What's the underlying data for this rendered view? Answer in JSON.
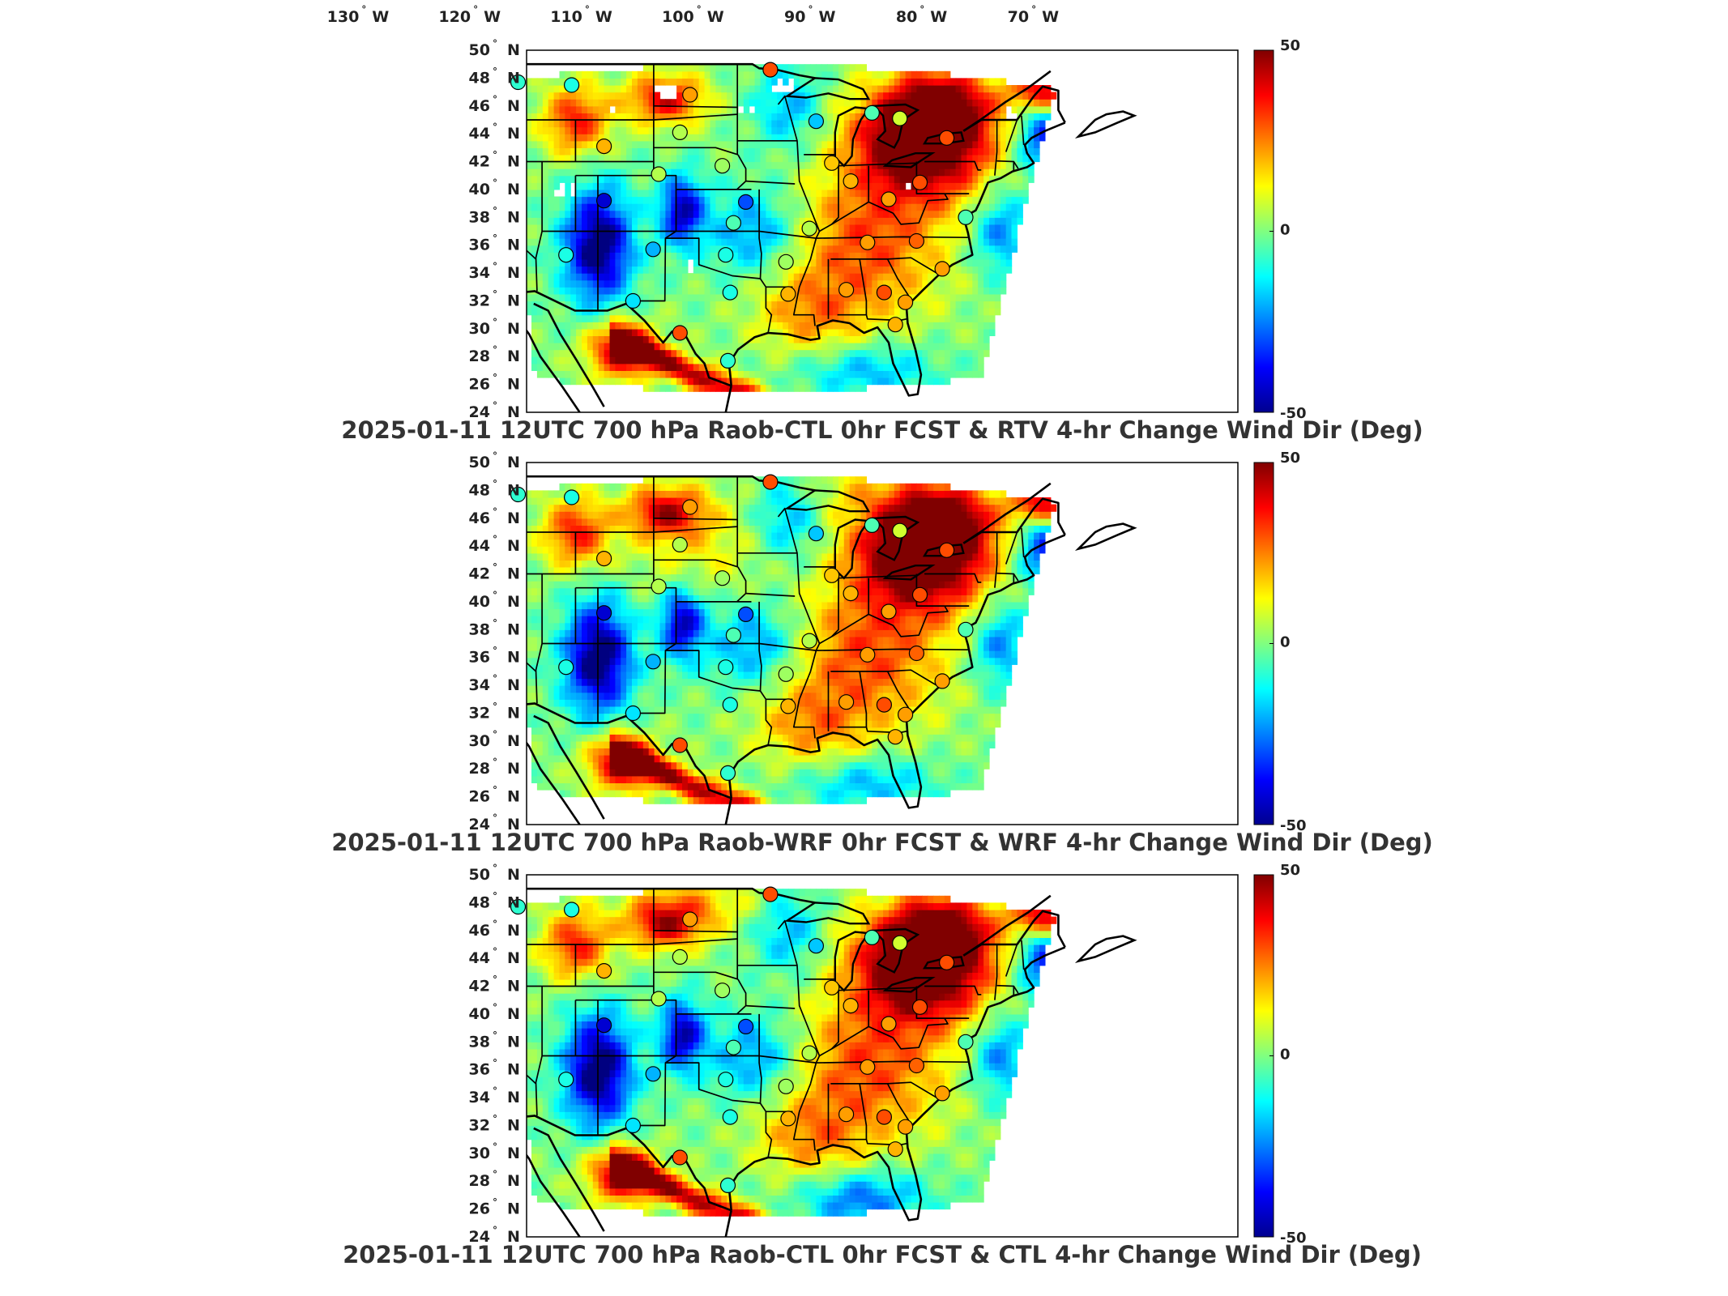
{
  "lon_labels": [
    "130",
    "120",
    "110",
    "100",
    "90",
    "80",
    "70"
  ],
  "lon_suffix": "W",
  "lat_labels": [
    "50",
    "48",
    "46",
    "44",
    "42",
    "40",
    "38",
    "36",
    "34",
    "32",
    "30",
    "28",
    "26",
    "24"
  ],
  "lat_suffix": "N",
  "degree_symbol": "°",
  "colorbar": {
    "ticks": [
      "50",
      "0",
      "-50"
    ],
    "min": -50,
    "max": 50,
    "colormap": "jet",
    "colors": [
      "#00008f",
      "#0000ff",
      "#0080ff",
      "#00ffff",
      "#80ff80",
      "#ffff00",
      "#ff8000",
      "#ff0000",
      "#800000"
    ]
  },
  "panels": [
    {
      "title": "2025-01-11 12UTC 700 hPa Raob-CTL 0hr FCST & RTV 4-hr Change Wind Dir (Deg)",
      "scheme": "rtv"
    },
    {
      "title": "2025-01-11 12UTC 700 hPa Raob-WRF 0hr FCST & WRF 4-hr Change Wind Dir (Deg)",
      "scheme": "wrf"
    },
    {
      "title": "2025-01-11 12UTC 700 hPa Raob-CTL 0hr FCST & CTL 4-hr Change Wind Dir (Deg)",
      "scheme": "ctl"
    }
  ],
  "stations": [
    {
      "lon": -116.2,
      "lat": 47.7,
      "v": -8
    },
    {
      "lon": -111.4,
      "lat": 47.5,
      "v": -10
    },
    {
      "lon": -100.8,
      "lat": 46.8,
      "v": 22
    },
    {
      "lon": -93.6,
      "lat": 48.6,
      "v": 30
    },
    {
      "lon": -108.5,
      "lat": 43.1,
      "v": 20
    },
    {
      "lon": -101.7,
      "lat": 44.1,
      "v": 5
    },
    {
      "lon": -89.5,
      "lat": 44.9,
      "v": -18
    },
    {
      "lon": -84.5,
      "lat": 45.5,
      "v": -5
    },
    {
      "lon": -82.0,
      "lat": 45.1,
      "v": 8
    },
    {
      "lon": -77.8,
      "lat": 43.7,
      "v": 30
    },
    {
      "lon": -103.6,
      "lat": 41.1,
      "v": 5
    },
    {
      "lon": -97.9,
      "lat": 41.7,
      "v": 3
    },
    {
      "lon": -88.1,
      "lat": 41.9,
      "v": 18
    },
    {
      "lon": -86.4,
      "lat": 40.6,
      "v": 20
    },
    {
      "lon": -83.0,
      "lat": 39.3,
      "v": 22
    },
    {
      "lon": -80.2,
      "lat": 40.5,
      "v": 30
    },
    {
      "lon": -76.1,
      "lat": 38.0,
      "v": -5
    },
    {
      "lon": -108.5,
      "lat": 39.2,
      "v": -42
    },
    {
      "lon": -95.8,
      "lat": 39.1,
      "v": -30
    },
    {
      "lon": -96.9,
      "lat": 37.6,
      "v": -5
    },
    {
      "lon": -90.1,
      "lat": 37.2,
      "v": 5
    },
    {
      "lon": -84.9,
      "lat": 36.2,
      "v": 22
    },
    {
      "lon": -80.5,
      "lat": 36.3,
      "v": 28
    },
    {
      "lon": -111.9,
      "lat": 35.3,
      "v": -10
    },
    {
      "lon": -104.1,
      "lat": 35.7,
      "v": -20
    },
    {
      "lon": -97.6,
      "lat": 35.3,
      "v": -10
    },
    {
      "lon": -92.2,
      "lat": 34.8,
      "v": 3
    },
    {
      "lon": -78.2,
      "lat": 34.3,
      "v": 22
    },
    {
      "lon": -105.9,
      "lat": 32.0,
      "v": -15
    },
    {
      "lon": -97.2,
      "lat": 32.6,
      "v": -10
    },
    {
      "lon": -92.0,
      "lat": 32.5,
      "v": 20
    },
    {
      "lon": -86.8,
      "lat": 32.8,
      "v": 22
    },
    {
      "lon": -83.4,
      "lat": 32.6,
      "v": 30
    },
    {
      "lon": -81.5,
      "lat": 31.9,
      "v": 22
    },
    {
      "lon": -101.7,
      "lat": 29.7,
      "v": 30
    },
    {
      "lon": -97.4,
      "lat": 27.7,
      "v": -8
    },
    {
      "lon": -82.4,
      "lat": 30.3,
      "v": 20
    }
  ]
}
